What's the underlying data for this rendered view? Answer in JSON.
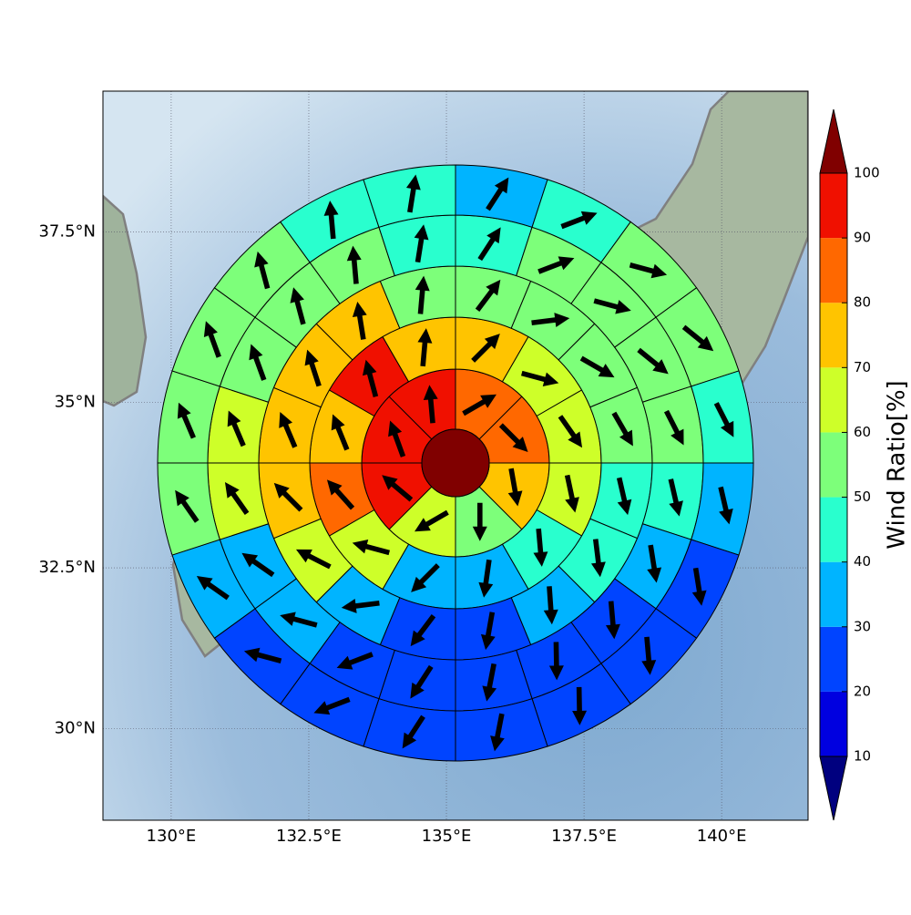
{
  "chart_data": {
    "type": "ring_map",
    "xlim": [
      128.76,
      141.57
    ],
    "ylim": [
      28.55,
      39.5
    ],
    "xticks": [
      {
        "value": 130,
        "label": "130°E"
      },
      {
        "value": 132.5,
        "label": "132.5°E"
      },
      {
        "value": 135,
        "label": "135°E"
      },
      {
        "value": 137.5,
        "label": "137.5°E"
      },
      {
        "value": 140,
        "label": "140°E"
      }
    ],
    "yticks": [
      {
        "value": 30,
        "label": "30°N"
      },
      {
        "value": 32.5,
        "label": "32.5°N"
      },
      {
        "value": 35,
        "label": "35°N"
      },
      {
        "value": 37.5,
        "label": "37.5°N"
      }
    ],
    "grid": true,
    "center": {
      "value": 105
    },
    "rings": [
      {
        "values": [
          85,
          85,
          75,
          55,
          65,
          95,
          95,
          95
        ],
        "directions": [
          60,
          135,
          170,
          180,
          240,
          310,
          340,
          355
        ]
      },
      {
        "values": [
          75,
          65,
          65,
          65,
          45,
          35,
          35,
          65,
          85,
          75,
          95,
          75
        ],
        "directions": [
          45,
          105,
          145,
          168,
          175,
          188,
          225,
          285,
          318,
          338,
          345,
          5
        ]
      },
      {
        "values": [
          55,
          55,
          55,
          55,
          45,
          45,
          35,
          25,
          25,
          35,
          65,
          75,
          75,
          75,
          75,
          55
        ],
        "directions": [
          37,
          83,
          120,
          150,
          167,
          173,
          176,
          190,
          217,
          263,
          297,
          315,
          337,
          342,
          351,
          5
        ]
      },
      {
        "values": [
          45,
          55,
          55,
          55,
          55,
          45,
          35,
          25,
          25,
          25,
          25,
          25,
          35,
          35,
          65,
          65,
          55,
          55,
          55,
          45
        ],
        "directions": [
          33,
          69,
          105,
          129,
          153,
          167,
          171,
          175,
          179,
          191,
          213,
          249,
          285,
          305,
          325,
          337,
          340,
          345,
          355,
          9
        ]
      },
      {
        "values": [
          35,
          45,
          55,
          55,
          45,
          35,
          25,
          25,
          25,
          25,
          25,
          25,
          25,
          35,
          55,
          55,
          55,
          55,
          45,
          45
        ],
        "directions": [
          33,
          69,
          105,
          129,
          153,
          167,
          171,
          175,
          179,
          191,
          213,
          249,
          285,
          305,
          325,
          337,
          340,
          345,
          355,
          9
        ]
      }
    ],
    "colorbar": {
      "label": "Wind Ratio[%]",
      "ticks": [
        10,
        20,
        30,
        40,
        50,
        60,
        70,
        80,
        90,
        100
      ],
      "colors": [
        "#0000e0",
        "#0044ff",
        "#00b4ff",
        "#29ffce",
        "#7dff7a",
        "#ceff29",
        "#ffc400",
        "#ff6800",
        "#f01000"
      ],
      "under_color": "#00007f",
      "over_color": "#800000"
    }
  }
}
